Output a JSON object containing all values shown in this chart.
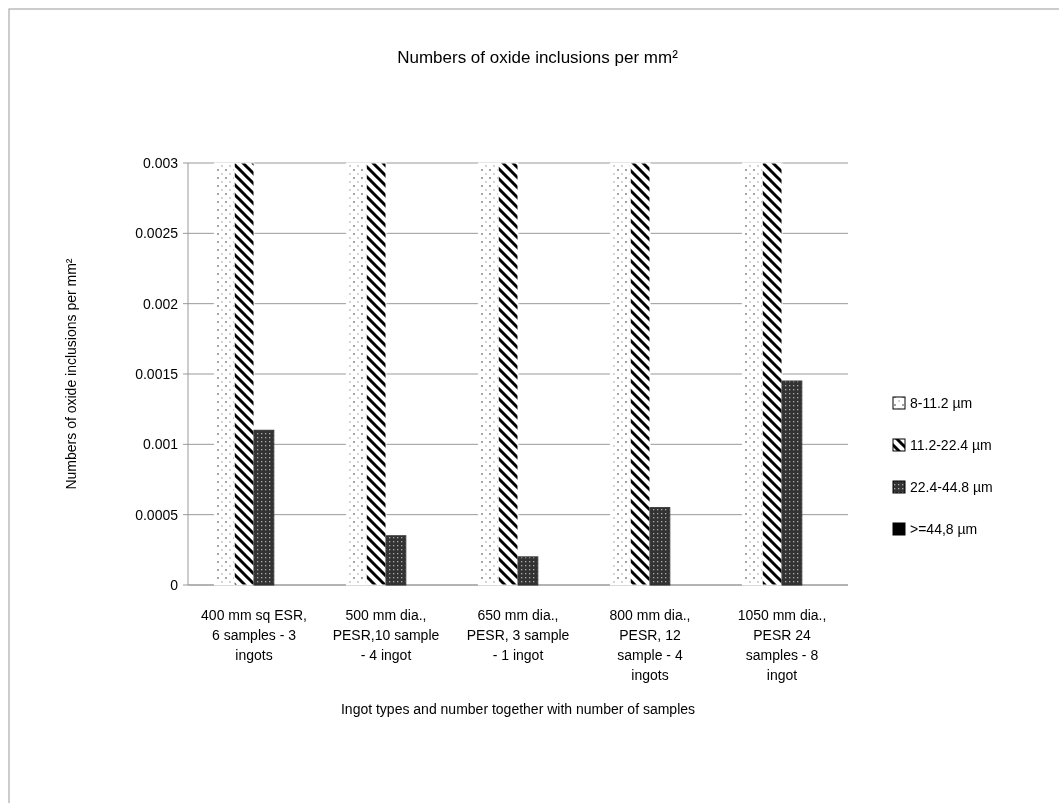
{
  "chart_data": {
    "type": "bar",
    "title": "Numbers of oxide inclusions per mm²",
    "xlabel": "Ingot types and number together with number of samples",
    "ylabel": "Numbers of oxide inclusions per mm²",
    "categories": [
      "400 mm sq ESR, 6 samples - 3 ingots",
      "500 mm dia., PESR,10 sample - 4 ingot",
      "650 mm dia., PESR, 3 sample - 1 ingot",
      "800 mm dia., PESR, 12 sample - 4 ingots",
      "1050 mm dia., PESR 24 samples - 8 ingot"
    ],
    "series": [
      {
        "name": "8-11.2 µm",
        "color": "#ffffff",
        "values": [
          0.003,
          0.003,
          0.003,
          0.003,
          0.003
        ]
      },
      {
        "name": "11.2-22.4 µm",
        "color": "#ffffff",
        "values": [
          0.003,
          0.003,
          0.003,
          0.003,
          0.003
        ]
      },
      {
        "name": "22.4-44.8 µm",
        "color": "#333333",
        "values": [
          0.0011,
          0.00035,
          0.0002,
          0.00055,
          0.00145
        ]
      },
      {
        "name": ">=44,8 µm",
        "color": "#000000",
        "values": [
          0,
          0,
          0,
          0,
          0
        ]
      }
    ],
    "ylim": [
      0,
      0.003
    ],
    "yticks": [
      0,
      0.0005,
      0.001,
      0.0015,
      0.002,
      0.0025,
      0.003
    ],
    "grid": "y",
    "legend": "right"
  }
}
